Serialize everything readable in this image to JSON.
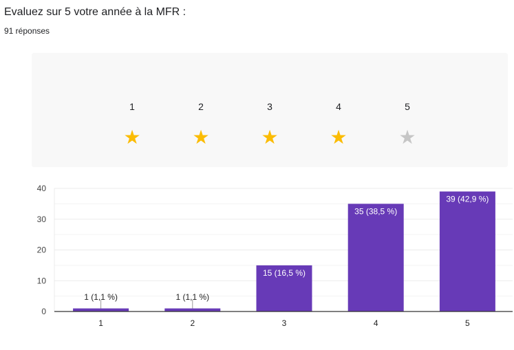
{
  "question": {
    "title": "Evaluez sur 5 votre année à la MFR :",
    "responses": "91 réponses"
  },
  "rating_preview": {
    "labels": [
      "1",
      "2",
      "3",
      "4",
      "5"
    ],
    "filled": [
      true,
      true,
      true,
      true,
      false
    ],
    "colors": {
      "filled": "#fbbc04",
      "empty": "#c6c6c6"
    },
    "icon": "star-icon"
  },
  "chart_data": {
    "type": "bar",
    "categories": [
      "1",
      "2",
      "3",
      "4",
      "5"
    ],
    "values": [
      1,
      1,
      15,
      35,
      39
    ],
    "data_labels": [
      "1 (1,1 %)",
      "1 (1,1 %)",
      "15 (16,5 %)",
      "35 (38,5 %)",
      "39 (42,9 %)"
    ],
    "ylim": [
      0,
      40
    ],
    "yticks": [
      "0",
      "10",
      "20",
      "30",
      "40"
    ],
    "grid": true,
    "legend": "none",
    "bar_color": "#673ab7"
  }
}
